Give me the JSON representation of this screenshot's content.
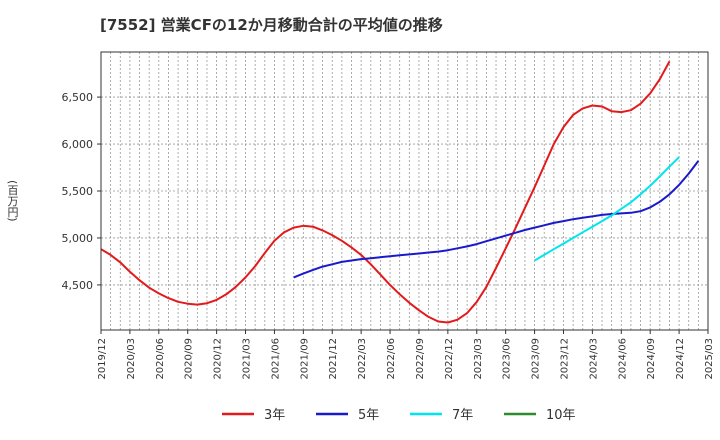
{
  "chart_data": {
    "type": "line",
    "title": "[7552]  営業CFの12か月移動合計の平均値の推移",
    "ylabel": "(百万円)",
    "xlabel": "",
    "ylim": [
      4020,
      6980
    ],
    "yticks": [
      4500,
      5000,
      5500,
      6000,
      6500
    ],
    "ytick_labels": [
      "4,500",
      "5,000",
      "5,500",
      "6,000",
      "6,500"
    ],
    "x_tick_labels": [
      "2019/12",
      "2020/03",
      "2020/06",
      "2020/09",
      "2020/12",
      "2021/03",
      "2021/06",
      "2021/09",
      "2021/12",
      "2022/03",
      "2022/06",
      "2022/09",
      "2022/12",
      "2023/03",
      "2023/06",
      "2023/09",
      "2023/12",
      "2024/03",
      "2024/06",
      "2024/09",
      "2024/12",
      "2025/03"
    ],
    "grid": true,
    "legend_position": "bottom",
    "series": [
      {
        "name": "3年",
        "color": "#e31a1c",
        "start_month_index": 0,
        "values": [
          4880,
          4820,
          4740,
          4640,
          4550,
          4470,
          4410,
          4360,
          4320,
          4300,
          4290,
          4305,
          4340,
          4400,
          4480,
          4580,
          4700,
          4840,
          4970,
          5060,
          5110,
          5130,
          5120,
          5080,
          5030,
          4970,
          4900,
          4820,
          4720,
          4610,
          4500,
          4400,
          4310,
          4230,
          4160,
          4110,
          4100,
          4130,
          4200,
          4320,
          4480,
          4680,
          4890,
          5100,
          5320,
          5540,
          5770,
          6000,
          6180,
          6310,
          6380,
          6410,
          6400,
          6350,
          6340,
          6360,
          6430,
          6540,
          6690,
          6880
        ]
      },
      {
        "name": "5年",
        "color": "#1a1acc",
        "start_month_index": 20,
        "values": [
          4580,
          4620,
          4660,
          4695,
          4720,
          4745,
          4760,
          4775,
          4785,
          4795,
          4805,
          4815,
          4825,
          4835,
          4845,
          4855,
          4870,
          4890,
          4910,
          4935,
          4965,
          4995,
          5025,
          5055,
          5085,
          5110,
          5135,
          5160,
          5180,
          5200,
          5215,
          5230,
          5245,
          5255,
          5262,
          5268,
          5285,
          5325,
          5385,
          5465,
          5565,
          5685,
          5820
        ]
      },
      {
        "name": "7年",
        "color": "#00e5ee",
        "start_month_index": 45,
        "values": [
          4760,
          4820,
          4880,
          4940,
          5000,
          5060,
          5120,
          5180,
          5240,
          5310,
          5380,
          5465,
          5555,
          5655,
          5760,
          5860
        ]
      },
      {
        "name": "10年",
        "color": "#2e8b2e",
        "start_month_index": 59,
        "values": []
      }
    ]
  }
}
